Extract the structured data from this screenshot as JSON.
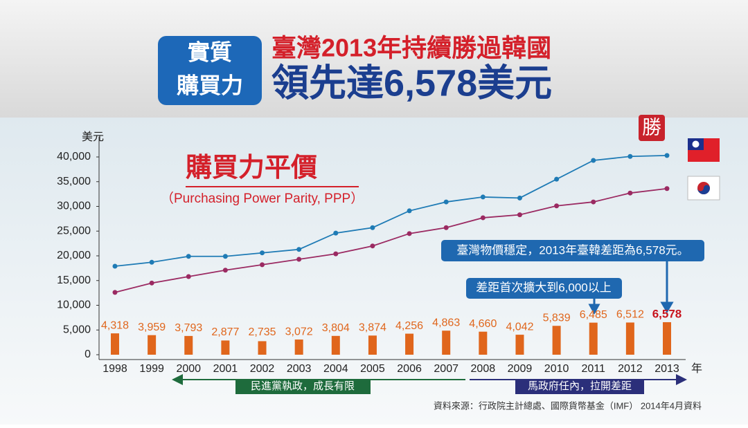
{
  "chart_data": {
    "type": "line",
    "badge": [
      "實質",
      "購買力"
    ],
    "headline": [
      "臺灣2013年持續勝過韓國",
      "領先達6,578美元"
    ],
    "title": "購買力平價",
    "subtitle": "（Purchasing Power Parity, PPP）",
    "y_label": "美元",
    "x_label": "年",
    "stamp": "勝",
    "categories": [
      "1998",
      "1999",
      "2000",
      "2001",
      "2002",
      "2003",
      "2004",
      "2005",
      "2006",
      "2007",
      "2008",
      "2009",
      "2010",
      "2011",
      "2012",
      "2013"
    ],
    "series": [
      {
        "color": "#1f7bb5",
        "values": [
          17900,
          18700,
          19900,
          19900,
          20600,
          21300,
          24600,
          25700,
          29100,
          30900,
          31900,
          31700,
          35500,
          39300,
          40100,
          40300
        ]
      },
      {
        "color": "#9b2a62",
        "values": [
          12600,
          14500,
          15800,
          17100,
          18200,
          19300,
          20400,
          22000,
          24500,
          25700,
          27700,
          28300,
          30100,
          30900,
          32700,
          33600
        ]
      }
    ],
    "bars": {
      "color": "#e0661c",
      "values": [
        4318,
        3959,
        3793,
        2877,
        2735,
        3072,
        3804,
        3874,
        4256,
        4863,
        4660,
        4042,
        5839,
        6485,
        6512,
        6578
      ],
      "value_labels": [
        "4,318",
        "3,959",
        "3,793",
        "2,877",
        "2,735",
        "3,072",
        "3,804",
        "3,874",
        "4,256",
        "4,863",
        "4,660",
        "4,042",
        "5,839",
        "6,485",
        "6,512",
        "6,578"
      ]
    },
    "ylim": [
      0,
      40000
    ],
    "yticks": [
      0,
      {
        "value": 5000,
        "label": "5,000"
      },
      {
        "value": 10000,
        "label": "10,000"
      },
      {
        "value": 15000,
        "label": "15,000"
      },
      {
        "value": 20000,
        "label": "20,000"
      },
      {
        "value": 25000,
        "label": "25,000"
      },
      {
        "value": 30000,
        "label": "30,000"
      },
      {
        "value": 35000,
        "label": "35,000"
      },
      {
        "value": 40000,
        "label": "40,000"
      }
    ],
    "grid": false,
    "callouts": [
      "臺灣物價穩定，2013年臺韓差距為6,578元。",
      "差距首次擴大到6,000以上"
    ],
    "periods": [
      "民進黨執政，成長有限",
      "馬政府任內，拉開差距"
    ],
    "source": "資料來源：行政院主計總處、國際貨幣基金（IMF） 2014年4月資料"
  }
}
